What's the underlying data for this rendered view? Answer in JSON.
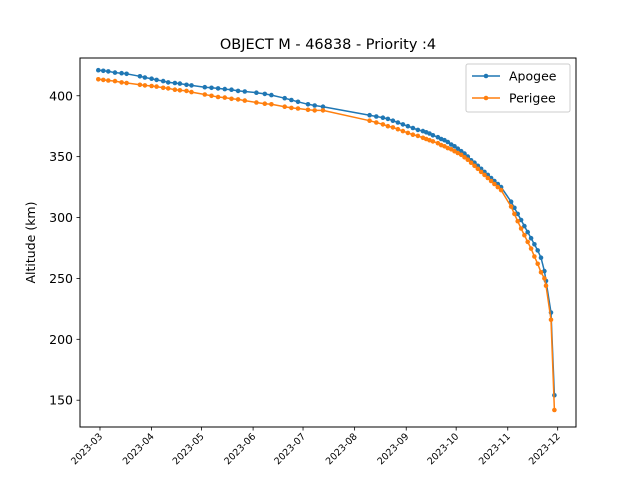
{
  "chart_data": {
    "type": "line",
    "title": "OBJECT M - 46838 - Priority :4",
    "xlabel": "",
    "ylabel": "Altitude (km)",
    "xlim": [
      "2023-02-17",
      "2023-12-12"
    ],
    "ylim": [
      128,
      431
    ],
    "x_ticks": [
      "2023-03",
      "2023-04",
      "2023-05",
      "2023-06",
      "2023-07",
      "2023-08",
      "2023-09",
      "2023-10",
      "2023-11",
      "2023-12"
    ],
    "y_ticks": [
      150,
      200,
      250,
      300,
      350,
      400
    ],
    "legend": {
      "position": "top-right",
      "entries": [
        "Apogee",
        "Perigee"
      ]
    },
    "grid": false,
    "series": [
      {
        "name": "Apogee",
        "color": "#1f77b4",
        "points": [
          [
            "2023-02-28",
            421
          ],
          [
            "2023-03-03",
            420.5
          ],
          [
            "2023-03-06",
            420
          ],
          [
            "2023-03-10",
            419
          ],
          [
            "2023-03-14",
            418.5
          ],
          [
            "2023-03-17",
            418
          ],
          [
            "2023-03-25",
            416
          ],
          [
            "2023-03-28",
            415
          ],
          [
            "2023-04-01",
            414
          ],
          [
            "2023-04-04",
            413
          ],
          [
            "2023-04-08",
            412
          ],
          [
            "2023-04-11",
            411
          ],
          [
            "2023-04-15",
            410.5
          ],
          [
            "2023-04-18",
            410
          ],
          [
            "2023-04-22",
            409
          ],
          [
            "2023-04-25",
            408.5
          ],
          [
            "2023-05-03",
            407
          ],
          [
            "2023-05-07",
            406.5
          ],
          [
            "2023-05-11",
            406
          ],
          [
            "2023-05-15",
            405.5
          ],
          [
            "2023-05-19",
            405
          ],
          [
            "2023-05-23",
            404
          ],
          [
            "2023-05-27",
            403.5
          ],
          [
            "2023-06-03",
            402.5
          ],
          [
            "2023-06-08",
            401.5
          ],
          [
            "2023-06-12",
            400.5
          ],
          [
            "2023-06-20",
            398
          ],
          [
            "2023-06-24",
            396.5
          ],
          [
            "2023-06-28",
            395
          ],
          [
            "2023-07-04",
            393
          ],
          [
            "2023-07-08",
            392
          ],
          [
            "2023-07-13",
            391
          ],
          [
            "2023-08-10",
            384
          ],
          [
            "2023-08-14",
            383
          ],
          [
            "2023-08-18",
            382
          ],
          [
            "2023-08-21",
            381
          ],
          [
            "2023-08-24",
            379.5
          ],
          [
            "2023-08-27",
            378
          ],
          [
            "2023-08-30",
            376.5
          ],
          [
            "2023-09-02",
            375
          ],
          [
            "2023-09-05",
            373.5
          ],
          [
            "2023-09-08",
            372
          ],
          [
            "2023-09-11",
            371
          ],
          [
            "2023-09-13",
            370
          ],
          [
            "2023-09-15",
            369
          ],
          [
            "2023-09-17",
            367.5
          ],
          [
            "2023-09-20",
            366
          ],
          [
            "2023-09-22",
            364.5
          ],
          [
            "2023-09-24",
            363.5
          ],
          [
            "2023-09-26",
            362
          ],
          [
            "2023-09-28",
            360
          ],
          [
            "2023-09-30",
            358.5
          ],
          [
            "2023-10-02",
            356.5
          ],
          [
            "2023-10-04",
            354.5
          ],
          [
            "2023-10-06",
            352.5
          ],
          [
            "2023-10-08",
            350
          ],
          [
            "2023-10-10",
            347
          ],
          [
            "2023-10-12",
            345
          ],
          [
            "2023-10-14",
            342.5
          ],
          [
            "2023-10-16",
            340
          ],
          [
            "2023-10-18",
            337.5
          ],
          [
            "2023-10-20",
            335
          ],
          [
            "2023-10-22",
            332.5
          ],
          [
            "2023-10-24",
            330
          ],
          [
            "2023-10-26",
            327.5
          ],
          [
            "2023-10-28",
            325
          ],
          [
            "2023-11-03",
            313
          ],
          [
            "2023-11-05",
            308
          ],
          [
            "2023-11-07",
            303
          ],
          [
            "2023-11-09",
            298
          ],
          [
            "2023-11-11",
            293
          ],
          [
            "2023-11-13",
            288
          ],
          [
            "2023-11-15",
            283
          ],
          [
            "2023-11-17",
            278
          ],
          [
            "2023-11-19",
            273
          ],
          [
            "2023-11-21",
            267
          ],
          [
            "2023-11-23",
            256
          ],
          [
            "2023-11-24",
            248
          ],
          [
            "2023-11-27",
            222
          ],
          [
            "2023-11-29",
            154
          ]
        ]
      },
      {
        "name": "Perigee",
        "color": "#ff7f0e",
        "points": [
          [
            "2023-02-28",
            413.5
          ],
          [
            "2023-03-03",
            413
          ],
          [
            "2023-03-06",
            412.5
          ],
          [
            "2023-03-10",
            412
          ],
          [
            "2023-03-14",
            411
          ],
          [
            "2023-03-17",
            410.5
          ],
          [
            "2023-03-25",
            409
          ],
          [
            "2023-03-28",
            408.5
          ],
          [
            "2023-04-01",
            408
          ],
          [
            "2023-04-04",
            407.5
          ],
          [
            "2023-04-08",
            406.5
          ],
          [
            "2023-04-11",
            406
          ],
          [
            "2023-04-15",
            405
          ],
          [
            "2023-04-18",
            404.5
          ],
          [
            "2023-04-22",
            404
          ],
          [
            "2023-04-25",
            403
          ],
          [
            "2023-05-03",
            401
          ],
          [
            "2023-05-07",
            400
          ],
          [
            "2023-05-11",
            399
          ],
          [
            "2023-05-15",
            398.5
          ],
          [
            "2023-05-19",
            397.5
          ],
          [
            "2023-05-23",
            397
          ],
          [
            "2023-05-27",
            396
          ],
          [
            "2023-06-03",
            394.5
          ],
          [
            "2023-06-08",
            393.5
          ],
          [
            "2023-06-12",
            393
          ],
          [
            "2023-06-20",
            391
          ],
          [
            "2023-06-24",
            390
          ],
          [
            "2023-06-28",
            389.5
          ],
          [
            "2023-07-04",
            388.5
          ],
          [
            "2023-07-08",
            388
          ],
          [
            "2023-07-13",
            388
          ],
          [
            "2023-08-10",
            379.5
          ],
          [
            "2023-08-14",
            378
          ],
          [
            "2023-08-18",
            376.5
          ],
          [
            "2023-08-21",
            375
          ],
          [
            "2023-08-24",
            374
          ],
          [
            "2023-08-27",
            372.5
          ],
          [
            "2023-08-30",
            371
          ],
          [
            "2023-09-02",
            369.5
          ],
          [
            "2023-09-05",
            368
          ],
          [
            "2023-09-08",
            367
          ],
          [
            "2023-09-11",
            365.5
          ],
          [
            "2023-09-13",
            364.5
          ],
          [
            "2023-09-15",
            363.5
          ],
          [
            "2023-09-17",
            362.5
          ],
          [
            "2023-09-20",
            361
          ],
          [
            "2023-09-22",
            359.5
          ],
          [
            "2023-09-24",
            358.5
          ],
          [
            "2023-09-26",
            357
          ],
          [
            "2023-09-28",
            356
          ],
          [
            "2023-09-30",
            354.5
          ],
          [
            "2023-10-02",
            353
          ],
          [
            "2023-10-04",
            351.5
          ],
          [
            "2023-10-06",
            349.5
          ],
          [
            "2023-10-08",
            347.5
          ],
          [
            "2023-10-10",
            345
          ],
          [
            "2023-10-12",
            342.5
          ],
          [
            "2023-10-14",
            340
          ],
          [
            "2023-10-16",
            337.5
          ],
          [
            "2023-10-18",
            335
          ],
          [
            "2023-10-20",
            332.5
          ],
          [
            "2023-10-22",
            330
          ],
          [
            "2023-10-24",
            327.5
          ],
          [
            "2023-10-26",
            325
          ],
          [
            "2023-10-28",
            322.5
          ],
          [
            "2023-11-03",
            309
          ],
          [
            "2023-11-05",
            303
          ],
          [
            "2023-11-07",
            297
          ],
          [
            "2023-11-09",
            291
          ],
          [
            "2023-11-11",
            285.5
          ],
          [
            "2023-11-13",
            280
          ],
          [
            "2023-11-15",
            274.5
          ],
          [
            "2023-11-17",
            268
          ],
          [
            "2023-11-19",
            262
          ],
          [
            "2023-11-21",
            255
          ],
          [
            "2023-11-23",
            250
          ],
          [
            "2023-11-24",
            244
          ],
          [
            "2023-11-27",
            216
          ],
          [
            "2023-11-29",
            142
          ]
        ]
      }
    ]
  }
}
